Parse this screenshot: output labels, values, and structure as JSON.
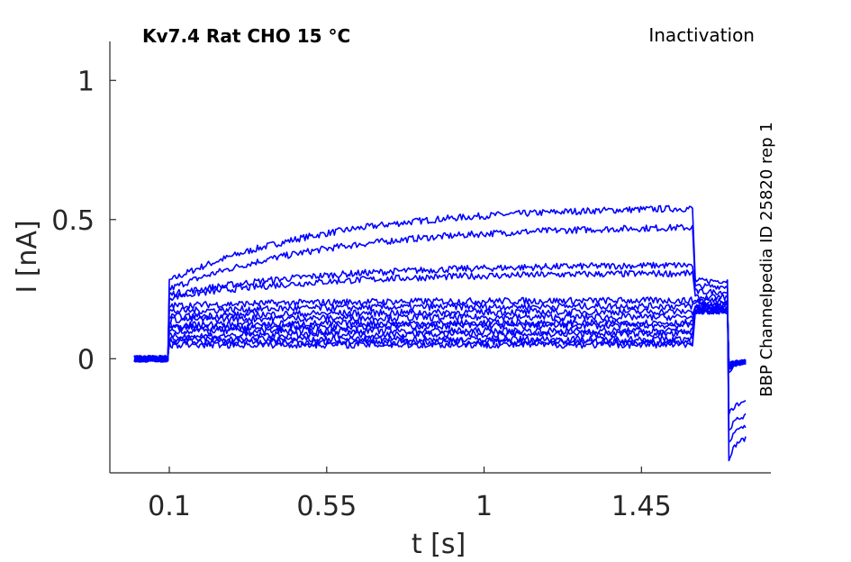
{
  "chart_data": {
    "type": "line",
    "title": "Kv7.4  Rat  CHO  15 °C",
    "subtitle": "Inactivation",
    "side_label": "BBP Channelpedia ID 25820 rep 1",
    "xlabel": "t [s]",
    "ylabel": "I [nA]",
    "xlim": [
      -0.07,
      1.82
    ],
    "ylim": [
      -0.41,
      1.14
    ],
    "xticks": [
      0.1,
      0.55,
      1,
      1.45
    ],
    "xtick_labels": [
      "0.1",
      "0.55",
      "1",
      "1.45"
    ],
    "yticks": [
      0,
      0.5,
      1
    ],
    "ytick_labels": [
      "0",
      "0.5",
      "1"
    ],
    "grid": false,
    "line_color": "#0000ff",
    "time_breakpoints": [
      0.0,
      0.1,
      1.6,
      1.7,
      1.75
    ],
    "series": [
      {
        "pre": 0.0,
        "step_start": 0.28,
        "step_end": 0.55,
        "tail": 0.28,
        "tail_min": -0.36,
        "tail_end": -0.28
      },
      {
        "pre": 0.0,
        "step_start": 0.25,
        "step_end": 0.48,
        "tail": 0.26,
        "tail_min": -0.3,
        "tail_end": -0.24
      },
      {
        "pre": 0.0,
        "step_start": 0.23,
        "step_end": 0.34,
        "tail": 0.24,
        "tail_min": -0.26,
        "tail_end": -0.2
      },
      {
        "pre": 0.0,
        "step_start": 0.22,
        "step_end": 0.31,
        "tail": 0.22,
        "tail_min": -0.2,
        "tail_end": -0.15
      },
      {
        "pre": 0.0,
        "step_start": 0.19,
        "step_end": 0.21,
        "tail": 0.21,
        "tail_min": -0.05,
        "tail_end": -0.01
      },
      {
        "pre": 0.0,
        "step_start": 0.17,
        "step_end": 0.19,
        "tail": 0.2,
        "tail_min": -0.04,
        "tail_end": -0.01
      },
      {
        "pre": 0.0,
        "step_start": 0.15,
        "step_end": 0.17,
        "tail": 0.19,
        "tail_min": -0.03,
        "tail_end": -0.01
      },
      {
        "pre": 0.0,
        "step_start": 0.14,
        "step_end": 0.15,
        "tail": 0.19,
        "tail_min": -0.03,
        "tail_end": -0.01
      },
      {
        "pre": 0.0,
        "step_start": 0.12,
        "step_end": 0.13,
        "tail": 0.18,
        "tail_min": -0.02,
        "tail_end": -0.01
      },
      {
        "pre": 0.0,
        "step_start": 0.11,
        "step_end": 0.12,
        "tail": 0.18,
        "tail_min": -0.02,
        "tail_end": -0.01
      },
      {
        "pre": 0.0,
        "step_start": 0.1,
        "step_end": 0.1,
        "tail": 0.18,
        "tail_min": -0.02,
        "tail_end": -0.01
      },
      {
        "pre": 0.0,
        "step_start": 0.08,
        "step_end": 0.09,
        "tail": 0.17,
        "tail_min": -0.02,
        "tail_end": -0.01
      },
      {
        "pre": 0.0,
        "step_start": 0.07,
        "step_end": 0.07,
        "tail": 0.17,
        "tail_min": -0.02,
        "tail_end": -0.01
      },
      {
        "pre": 0.0,
        "step_start": 0.06,
        "step_end": 0.06,
        "tail": 0.17,
        "tail_min": -0.02,
        "tail_end": -0.01
      },
      {
        "pre": 0.0,
        "step_start": 0.05,
        "step_end": 0.05,
        "tail": 0.17,
        "tail_min": -0.02,
        "tail_end": -0.01
      }
    ]
  }
}
